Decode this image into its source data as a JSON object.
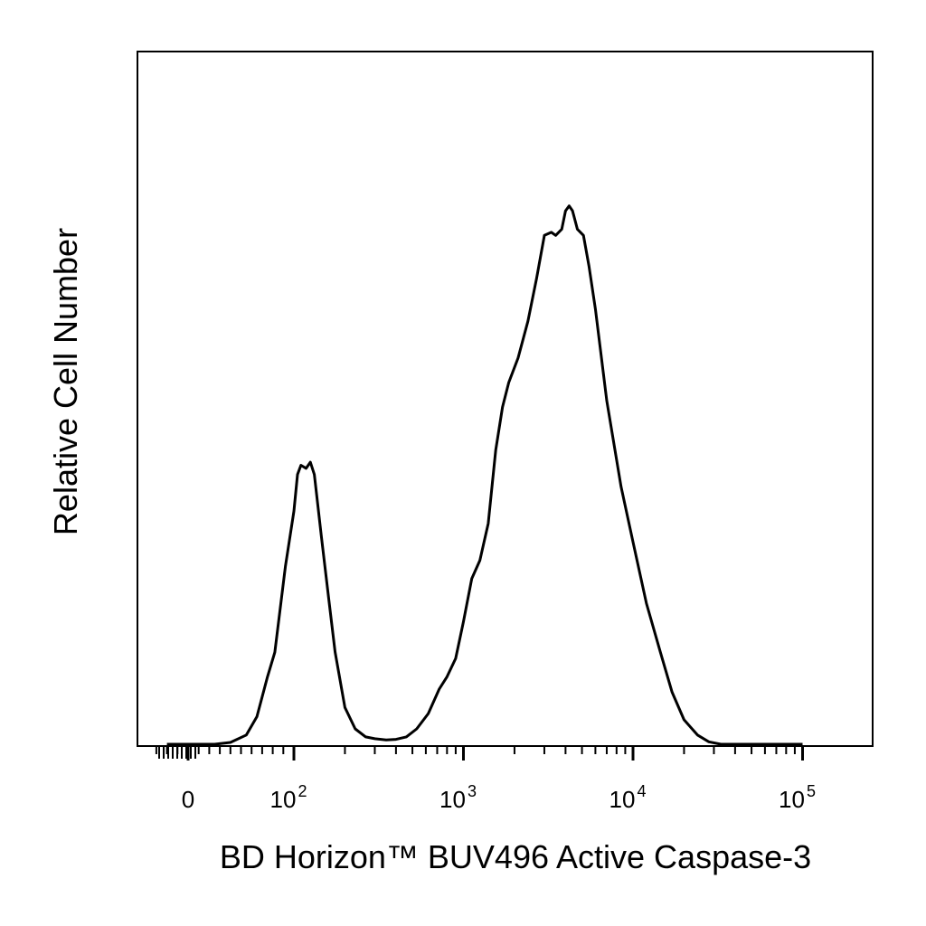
{
  "chart_data": {
    "type": "line",
    "title": "",
    "xlabel": "BD Horizon™ BUV496  Active Caspase-3",
    "ylabel": "Relative Cell Number",
    "x_scale": "biexponential",
    "x_tick_labels": [
      {
        "value": 0,
        "base": "0",
        "exp": ""
      },
      {
        "value": 100,
        "base": "10",
        "exp": "2"
      },
      {
        "value": 1000,
        "base": "10",
        "exp": "3"
      },
      {
        "value": 10000,
        "base": "10",
        "exp": "4"
      },
      {
        "value": 100000,
        "base": "10",
        "exp": "5"
      }
    ],
    "y_tick_labels": [],
    "ylim": [
      0,
      1
    ],
    "grid": false,
    "legend": "none",
    "series": [
      {
        "color": "#000000",
        "points": [
          [
            -20,
            0.0
          ],
          [
            0,
            0.0
          ],
          [
            25,
            0.0
          ],
          [
            40,
            0.003
          ],
          [
            55,
            0.015
          ],
          [
            65,
            0.045
          ],
          [
            75,
            0.11
          ],
          [
            82,
            0.15
          ],
          [
            92,
            0.29
          ],
          [
            100,
            0.38
          ],
          [
            105,
            0.44
          ],
          [
            110,
            0.455
          ],
          [
            118,
            0.45
          ],
          [
            125,
            0.46
          ],
          [
            132,
            0.44
          ],
          [
            145,
            0.34
          ],
          [
            160,
            0.24
          ],
          [
            175,
            0.15
          ],
          [
            200,
            0.06
          ],
          [
            230,
            0.025
          ],
          [
            265,
            0.012
          ],
          [
            300,
            0.009
          ],
          [
            350,
            0.007
          ],
          [
            400,
            0.008
          ],
          [
            460,
            0.012
          ],
          [
            530,
            0.025
          ],
          [
            620,
            0.05
          ],
          [
            720,
            0.09
          ],
          [
            800,
            0.11
          ],
          [
            900,
            0.14
          ],
          [
            1000,
            0.2
          ],
          [
            1120,
            0.27
          ],
          [
            1250,
            0.3
          ],
          [
            1400,
            0.36
          ],
          [
            1550,
            0.48
          ],
          [
            1700,
            0.55
          ],
          [
            1850,
            0.59
          ],
          [
            2100,
            0.63
          ],
          [
            2400,
            0.69
          ],
          [
            2700,
            0.76
          ],
          [
            3000,
            0.83
          ],
          [
            3300,
            0.835
          ],
          [
            3500,
            0.83
          ],
          [
            3800,
            0.84
          ],
          [
            4000,
            0.87
          ],
          [
            4200,
            0.878
          ],
          [
            4400,
            0.87
          ],
          [
            4700,
            0.84
          ],
          [
            5100,
            0.83
          ],
          [
            5500,
            0.78
          ],
          [
            6000,
            0.71
          ],
          [
            7000,
            0.56
          ],
          [
            8500,
            0.42
          ],
          [
            10000,
            0.33
          ],
          [
            12000,
            0.23
          ],
          [
            14500,
            0.15
          ],
          [
            17000,
            0.085
          ],
          [
            20000,
            0.04
          ],
          [
            24000,
            0.015
          ],
          [
            28000,
            0.004
          ],
          [
            33000,
            0.0
          ],
          [
            100000,
            0.0
          ]
        ]
      }
    ]
  }
}
